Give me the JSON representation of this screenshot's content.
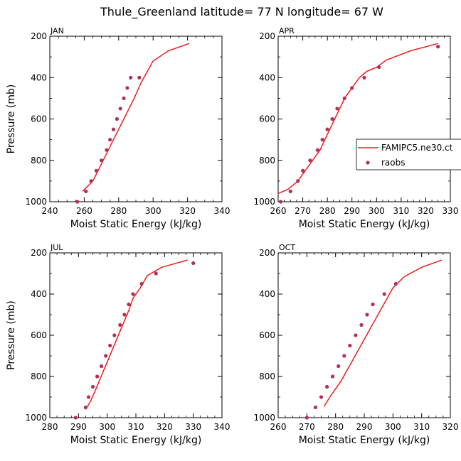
{
  "title": "Thule_Greenland  latitude= 77 N longitude= 67 W",
  "colors": {
    "model": "#ee1c1c",
    "obs": "#b0305a"
  },
  "legend": {
    "model_label": "FAMIPC5.ne30.ct",
    "obs_label": "raobs"
  },
  "chart_data": [
    {
      "type": "line",
      "panel": "JAN",
      "xlabel": "Moist Static Energy (kJ/kg)",
      "ylabel": "Pressure (mb)",
      "xlim": [
        240,
        340
      ],
      "ylim": [
        1000,
        200
      ],
      "xticks": [
        240,
        260,
        280,
        300,
        320,
        340
      ],
      "yticks": [
        200,
        400,
        600,
        800,
        1000
      ],
      "series": [
        {
          "name": "FAMIPC5.ne30.ct",
          "kind": "line",
          "x": [
            259,
            262,
            265,
            268,
            271,
            274,
            277,
            280,
            283,
            286,
            289,
            293,
            300,
            309,
            321
          ],
          "y": [
            950,
            925,
            900,
            850,
            800,
            750,
            700,
            650,
            600,
            550,
            500,
            425,
            320,
            270,
            235
          ]
        },
        {
          "name": "raobs",
          "kind": "points",
          "x": [
            256,
            261,
            264,
            267,
            270,
            273,
            275,
            277,
            279,
            281,
            283,
            285,
            287,
            292
          ],
          "y": [
            1000,
            950,
            900,
            850,
            800,
            750,
            700,
            650,
            600,
            550,
            500,
            450,
            400,
            400
          ]
        }
      ]
    },
    {
      "type": "line",
      "panel": "APR",
      "xlabel": "Moist Static Energy (kJ/kg)",
      "ylabel": "",
      "xlim": [
        260,
        330
      ],
      "ylim": [
        1000,
        200
      ],
      "xticks": [
        260,
        270,
        280,
        290,
        300,
        310,
        320,
        330
      ],
      "yticks": [
        200,
        400,
        600,
        800,
        1000
      ],
      "series": [
        {
          "name": "FAMIPC5.ne30.ct",
          "kind": "line",
          "x": [
            260,
            264,
            268,
            271,
            274,
            277,
            279,
            281,
            283,
            285,
            287,
            290,
            293,
            296,
            300,
            304,
            314,
            325
          ],
          "y": [
            960,
            940,
            900,
            850,
            800,
            750,
            700,
            650,
            600,
            550,
            500,
            450,
            400,
            370,
            350,
            315,
            270,
            235
          ]
        },
        {
          "name": "raobs",
          "kind": "points",
          "x": [
            261,
            265,
            268,
            270,
            273,
            276,
            278,
            280,
            282,
            284,
            287,
            290,
            295,
            301,
            325
          ],
          "y": [
            1000,
            950,
            900,
            850,
            800,
            750,
            700,
            650,
            600,
            550,
            500,
            450,
            400,
            350,
            250
          ]
        }
      ]
    },
    {
      "type": "line",
      "panel": "JUL",
      "xlabel": "Moist Static Energy (kJ/kg)",
      "ylabel": "Pressure (mb)",
      "xlim": [
        280,
        340
      ],
      "ylim": [
        1000,
        200
      ],
      "xticks": [
        280,
        290,
        300,
        310,
        320,
        330,
        340
      ],
      "yticks": [
        200,
        400,
        600,
        800,
        1000
      ],
      "series": [
        {
          "name": "FAMIPC5.ne30.ct",
          "kind": "line",
          "x": [
            292.5,
            294,
            295.5,
            297,
            298.5,
            300,
            301.5,
            303,
            304.5,
            306,
            307.5,
            309,
            311.5,
            314,
            319,
            328
          ],
          "y": [
            960,
            925,
            880,
            830,
            780,
            730,
            680,
            630,
            580,
            530,
            480,
            420,
            370,
            310,
            270,
            235
          ]
        },
        {
          "name": "raobs",
          "kind": "points",
          "x": [
            289,
            292.5,
            293.5,
            295,
            296.5,
            298,
            299.5,
            301,
            302.5,
            304.5,
            306,
            307.5,
            309,
            312,
            317,
            330
          ],
          "y": [
            1000,
            950,
            900,
            850,
            800,
            750,
            700,
            650,
            600,
            550,
            500,
            450,
            400,
            350,
            300,
            250
          ]
        }
      ]
    },
    {
      "type": "line",
      "panel": "OCT",
      "xlabel": "Moist Static Energy (kJ/kg)",
      "ylabel": "",
      "xlim": [
        260,
        320
      ],
      "ylim": [
        1000,
        200
      ],
      "xticks": [
        260,
        270,
        280,
        290,
        300,
        310,
        320
      ],
      "yticks": [
        200,
        400,
        600,
        800,
        1000
      ],
      "series": [
        {
          "name": "FAMIPC5.ne30.ct",
          "kind": "line",
          "x": [
            276,
            278,
            280,
            282,
            284,
            286,
            288,
            290,
            292,
            294,
            296,
            298,
            300,
            304,
            310,
            317
          ],
          "y": [
            945,
            900,
            860,
            820,
            770,
            720,
            670,
            620,
            570,
            520,
            470,
            420,
            370,
            315,
            270,
            235
          ]
        },
        {
          "name": "raobs",
          "kind": "points",
          "x": [
            270,
            273,
            275,
            277,
            279,
            281,
            283,
            285,
            287,
            289,
            291,
            293,
            297,
            301
          ],
          "y": [
            1000,
            950,
            900,
            850,
            800,
            750,
            700,
            650,
            600,
            550,
            500,
            450,
            400,
            350
          ]
        }
      ]
    }
  ]
}
